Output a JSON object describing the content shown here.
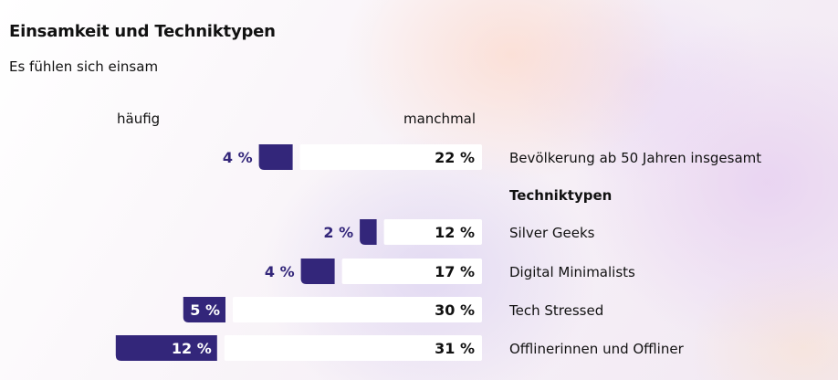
{
  "chart_data": {
    "type": "bar",
    "title": "Einsamkeit und Techniktypen",
    "subtitle": "Es fühlen sich einsam",
    "legend": {
      "left": "häufig",
      "right": "manchmal"
    },
    "colors": {
      "haeufig": "#33267a",
      "manchmal": "#ffffff"
    },
    "group_label": "Techniktypen",
    "rows": [
      {
        "category": "Bevölkerung ab 50 Jahren insgesamt",
        "haeufig": 4,
        "haeufig_label": "4 %",
        "manchmal": 22,
        "manchmal_label": "22 %"
      },
      {
        "category": "Silver Geeks",
        "haeufig": 2,
        "haeufig_label": "2 %",
        "manchmal": 12,
        "manchmal_label": "12 %"
      },
      {
        "category": "Digital Minimalists",
        "haeufig": 4,
        "haeufig_label": "4 %",
        "manchmal": 17,
        "manchmal_label": "17 %"
      },
      {
        "category": "Tech Stressed",
        "haeufig": 5,
        "haeufig_label": "5 %",
        "manchmal": 30,
        "manchmal_label": "30 %"
      },
      {
        "category": "Offlinerinnen und Offliner",
        "haeufig": 12,
        "haeufig_label": "12 %",
        "manchmal": 31,
        "manchmal_label": "31 %"
      }
    ]
  }
}
